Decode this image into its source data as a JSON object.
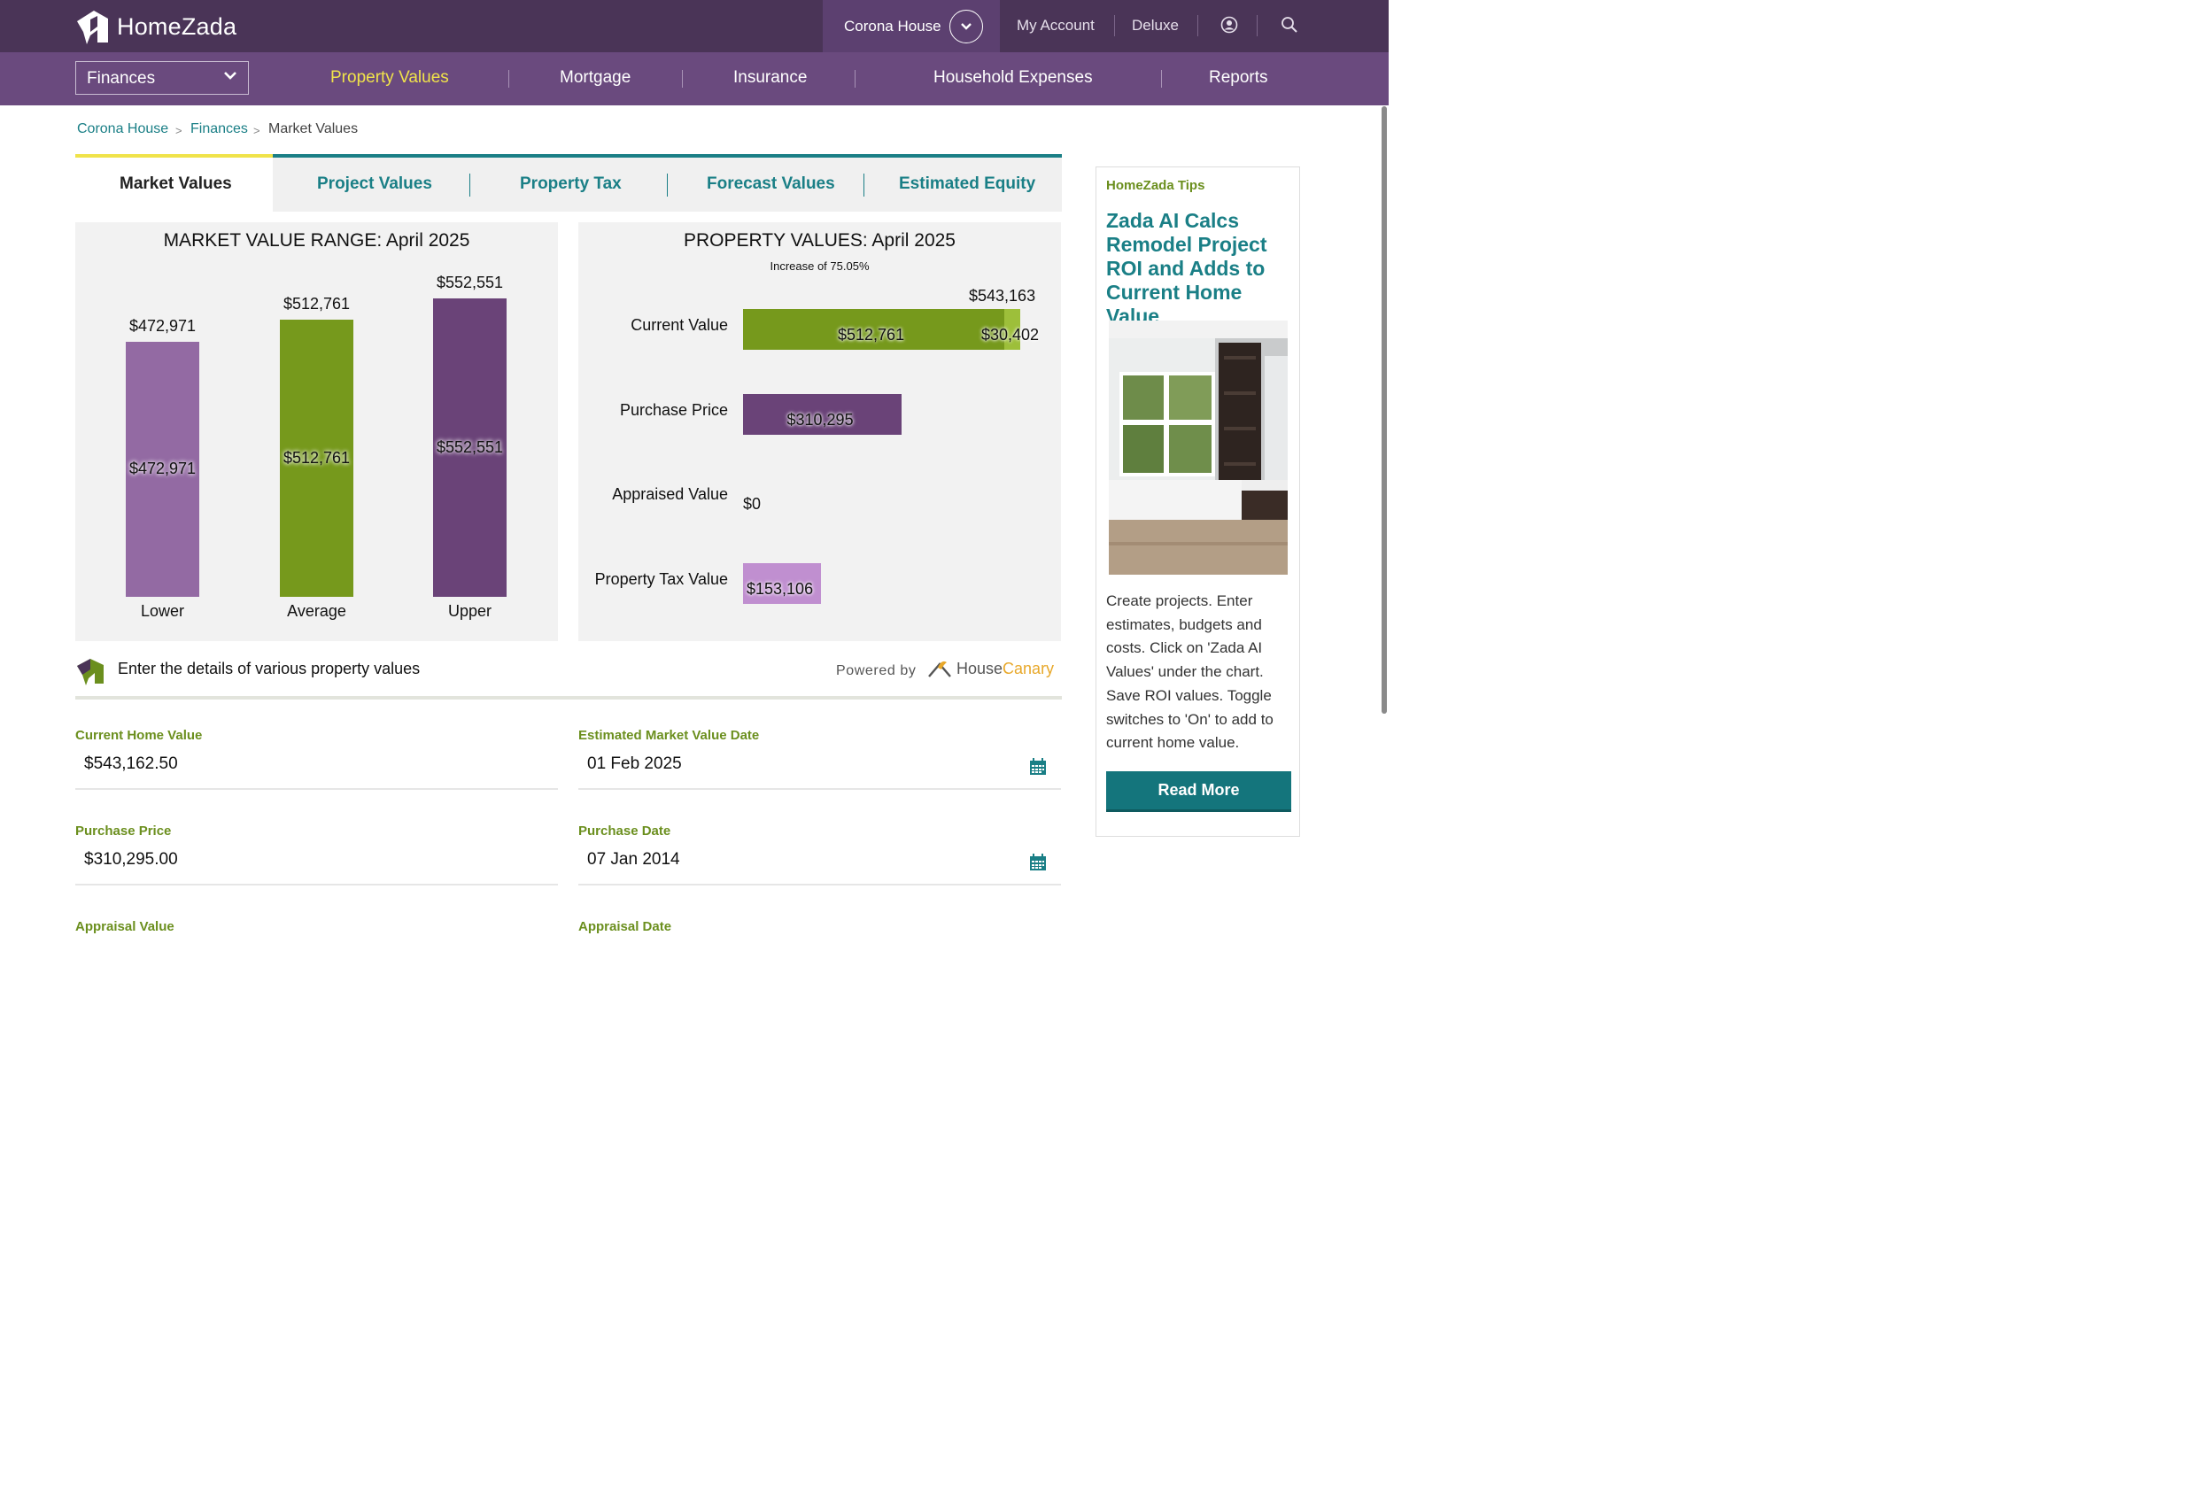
{
  "app": {
    "brand": "HomeZada"
  },
  "topbar": {
    "house": "Corona House",
    "links": [
      "My Account",
      "Deluxe"
    ]
  },
  "navbar": {
    "section": "Finances",
    "items": [
      "Property Values",
      "Mortgage",
      "Insurance",
      "Household Expenses",
      "Reports"
    ],
    "active": "Property Values"
  },
  "breadcrumb": {
    "items": [
      "Corona House",
      "Finances",
      "Market Values"
    ],
    "separator": ">"
  },
  "tabs": {
    "items": [
      "Market Values",
      "Project Values",
      "Property Tax",
      "Forecast Values",
      "Estimated Equity"
    ],
    "active": "Market Values"
  },
  "market_chart": {
    "title": "MARKET VALUE RANGE: April 2025",
    "bars": [
      {
        "label": "Lower",
        "value": 472971,
        "display": "$472,971",
        "color": "#936aa3"
      },
      {
        "label": "Average",
        "value": 512761,
        "display": "$512,761",
        "color": "#76991c"
      },
      {
        "label": "Upper",
        "value": 552551,
        "display": "$552,551",
        "color": "#6a4378"
      }
    ]
  },
  "property_chart": {
    "title": "PROPERTY VALUES: April 2025",
    "subtitle": "Increase of 75.05%",
    "total_display": "$543,163",
    "rows": [
      {
        "label": "Current Value",
        "segments": [
          {
            "value": 512761,
            "display": "$512,761",
            "color": "#76991c"
          },
          {
            "value": 30402,
            "display": "$30,402",
            "color": "#9dbf3a"
          }
        ]
      },
      {
        "label": "Purchase Price",
        "segments": [
          {
            "value": 310295,
            "display": "$310,295",
            "color": "#6a4378"
          }
        ]
      },
      {
        "label": "Appraised Value",
        "segments": [
          {
            "value": 0,
            "display": "$0",
            "color": "#936aa3"
          }
        ]
      },
      {
        "label": "Property Tax Value",
        "segments": [
          {
            "value": 153106,
            "display": "$153,106",
            "color": "#c08fd0"
          }
        ]
      }
    ]
  },
  "details": {
    "heading": "Enter the details of various property values",
    "powered_by": "Powered by",
    "provider_a": "House",
    "provider_b": "Canary"
  },
  "fields": {
    "current_home_value": {
      "label": "Current Home Value",
      "value": "$543,162.50"
    },
    "est_market_date": {
      "label": "Estimated Market Value Date",
      "value": "01 Feb 2025"
    },
    "purchase_price": {
      "label": "Purchase Price",
      "value": "$310,295.00"
    },
    "purchase_date": {
      "label": "Purchase Date",
      "value": "07 Jan 2014"
    },
    "appraisal_value": {
      "label": "Appraisal Value"
    },
    "appraisal_date": {
      "label": "Appraisal Date"
    }
  },
  "tips": {
    "heading": "HomeZada Tips",
    "title": "Zada AI Calcs Remodel Project ROI and Adds to Current Home Value",
    "body": "Create projects. Enter estimates, budgets and costs. Click on 'Zada AI Values' under the chart. Save ROI values. Toggle switches to 'On' to add to current home value.",
    "button": "Read More"
  },
  "colors": {
    "header": "#4a3457",
    "nav": "#6a4a7e",
    "accent": "#1a7f86",
    "highlight": "#f0e34a",
    "green": "#6b8f1e"
  }
}
